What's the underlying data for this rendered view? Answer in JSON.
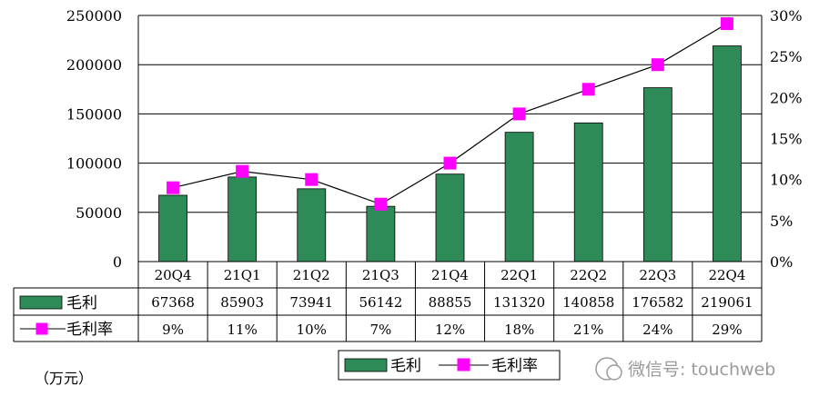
{
  "chart_data": {
    "type": "bar",
    "categories": [
      "20Q4",
      "21Q1",
      "21Q2",
      "21Q3",
      "21Q4",
      "22Q1",
      "22Q2",
      "22Q3",
      "22Q4"
    ],
    "series": [
      {
        "name": "毛利",
        "type": "bar",
        "axis": "left",
        "color": "#2e8b57",
        "values": [
          67368,
          85903,
          73941,
          56142,
          88855,
          131320,
          140858,
          176582,
          219061
        ]
      },
      {
        "name": "毛利率",
        "type": "line",
        "axis": "right",
        "color": "#ff00ff",
        "values": [
          9,
          11,
          10,
          7,
          12,
          18,
          21,
          24,
          29
        ],
        "labels": [
          "9%",
          "11%",
          "10%",
          "7%",
          "12%",
          "18%",
          "21%",
          "24%",
          "29%"
        ]
      }
    ],
    "bar_values_display": [
      "67368",
      "85903",
      "73941",
      "56142",
      "88855",
      "131320",
      "140858",
      "176582",
      "219061"
    ],
    "ylim_left": [
      0,
      250000
    ],
    "left_ticks": [
      "0",
      "50000",
      "100000",
      "150000",
      "200000",
      "250000"
    ],
    "ylim_right": [
      0,
      30
    ],
    "right_ticks": [
      "0%",
      "5%",
      "10%",
      "15%",
      "20%",
      "25%",
      "30%"
    ],
    "grid": true,
    "legend": [
      "毛利",
      "毛利率"
    ],
    "legend_position": "bottom",
    "unit": "（万元）",
    "watermark": "微信号: touchweb"
  }
}
